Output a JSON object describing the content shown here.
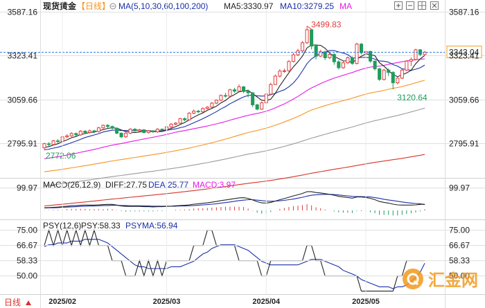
{
  "header": {
    "instrument": "现货黄金",
    "period": "【日线】",
    "period_icon": "circle-minus-icon",
    "ma_params": "MA(5,10,30,60,100,200)",
    "ma5": "MA5:3330.97",
    "ma10": "MA10:3279.25",
    "ma_more": "MA",
    "toolbar_icons": [
      "zoom-in-icon",
      "zoom-out-icon",
      "layout-icon",
      "close-icon"
    ]
  },
  "colors": {
    "ma5": "#222222",
    "ma10": "#1a2fa8",
    "ma30": "#e617e6",
    "ma60": "#f7931e",
    "ma100": "#9b9b9b",
    "ma200": "#d8322a",
    "up": "#e23b3b",
    "down": "#1f9c5a",
    "price_line": "#2c7be5",
    "price_box": "#f0a020",
    "grid": "#dedede",
    "macd_dif": "#222222",
    "macd_dea": "#1a2fa8",
    "psy": "#222222",
    "psyma": "#1a2fa8"
  },
  "chart_data": [
    {
      "type": "candlestick",
      "title": "现货黄金 日线",
      "y_ticks": [
        3587.16,
        3323.41,
        3059.66,
        2795.91
      ],
      "ylim": [
        2590,
        3590
      ],
      "current_price": 3343.04,
      "current_price_label": "3343.04",
      "annotations": [
        {
          "label": "3499.83",
          "value": 3499.83,
          "kind": "high"
        },
        {
          "label": "3120.64",
          "value": 3120.64,
          "kind": "low"
        },
        {
          "label": "2772.06",
          "value": 2772.06,
          "kind": "low"
        }
      ],
      "x_labels": [
        "2025/02",
        "2025/03",
        "2025/04",
        "2025/05"
      ],
      "moving_averages": [
        "MA5",
        "MA10",
        "MA30",
        "MA60",
        "MA100",
        "MA200"
      ],
      "candles": [
        [
          2770,
          2795,
          2760,
          2800
        ],
        [
          2794,
          2790,
          2780,
          2804
        ],
        [
          2790,
          2812,
          2784,
          2818
        ],
        [
          2812,
          2808,
          2798,
          2822
        ],
        [
          2808,
          2836,
          2802,
          2842
        ],
        [
          2836,
          2842,
          2828,
          2852
        ],
        [
          2842,
          2856,
          2836,
          2864
        ],
        [
          2856,
          2848,
          2840,
          2862
        ],
        [
          2848,
          2870,
          2842,
          2876
        ],
        [
          2870,
          2862,
          2852,
          2876
        ],
        [
          2862,
          2872,
          2856,
          2880
        ],
        [
          2872,
          2868,
          2858,
          2878
        ],
        [
          2868,
          2890,
          2862,
          2896
        ],
        [
          2890,
          2905,
          2884,
          2910
        ],
        [
          2905,
          2898,
          2888,
          2912
        ],
        [
          2898,
          2888,
          2880,
          2904
        ],
        [
          2888,
          2858,
          2852,
          2892
        ],
        [
          2858,
          2836,
          2828,
          2862
        ],
        [
          2836,
          2858,
          2830,
          2864
        ],
        [
          2858,
          2882,
          2852,
          2888
        ],
        [
          2882,
          2872,
          2866,
          2888
        ],
        [
          2872,
          2878,
          2866,
          2884
        ],
        [
          2878,
          2862,
          2856,
          2882
        ],
        [
          2862,
          2872,
          2856,
          2876
        ],
        [
          2872,
          2866,
          2860,
          2876
        ],
        [
          2866,
          2882,
          2860,
          2888
        ],
        [
          2882,
          2878,
          2872,
          2886
        ],
        [
          2878,
          2896,
          2872,
          2902
        ],
        [
          2896,
          2912,
          2890,
          2918
        ],
        [
          2912,
          2918,
          2906,
          2924
        ],
        [
          2918,
          2945,
          2914,
          2950
        ],
        [
          2945,
          2938,
          2930,
          2952
        ],
        [
          2938,
          2978,
          2934,
          2984
        ],
        [
          2978,
          2990,
          2972,
          3000
        ],
        [
          2990,
          2986,
          2978,
          2998
        ],
        [
          2986,
          3006,
          2982,
          3012
        ],
        [
          3006,
          3014,
          3000,
          3020
        ],
        [
          3014,
          3038,
          3008,
          3045
        ],
        [
          3038,
          3056,
          3032,
          3060
        ],
        [
          3056,
          3084,
          3050,
          3090
        ],
        [
          3084,
          3080,
          3072,
          3100
        ],
        [
          3080,
          3118,
          3076,
          3124
        ],
        [
          3118,
          3110,
          3100,
          3130
        ],
        [
          3110,
          3136,
          3104,
          3150
        ],
        [
          3136,
          3108,
          3098,
          3140
        ],
        [
          3108,
          3100,
          3072,
          3120
        ],
        [
          3100,
          3028,
          3015,
          3104
        ],
        [
          3028,
          3002,
          2995,
          3034
        ],
        [
          3002,
          3040,
          2998,
          3048
        ],
        [
          3040,
          3092,
          3034,
          3100
        ],
        [
          3092,
          3150,
          3086,
          3160
        ],
        [
          3150,
          3200,
          3146,
          3210
        ],
        [
          3200,
          3230,
          3192,
          3242
        ],
        [
          3230,
          3232,
          3220,
          3245
        ],
        [
          3232,
          3288,
          3226,
          3296
        ],
        [
          3288,
          3328,
          3282,
          3340
        ],
        [
          3328,
          3352,
          3320,
          3364
        ],
        [
          3352,
          3400,
          3346,
          3410
        ],
        [
          3400,
          3478,
          3392,
          3500
        ],
        [
          3478,
          3380,
          3360,
          3484
        ],
        [
          3380,
          3320,
          3300,
          3392
        ],
        [
          3320,
          3346,
          3314,
          3358
        ],
        [
          3346,
          3310,
          3296,
          3352
        ],
        [
          3310,
          3330,
          3302,
          3340
        ],
        [
          3330,
          3286,
          3268,
          3338
        ],
        [
          3286,
          3250,
          3240,
          3296
        ],
        [
          3250,
          3280,
          3244,
          3290
        ],
        [
          3280,
          3310,
          3272,
          3318
        ],
        [
          3310,
          3276,
          3268,
          3318
        ],
        [
          3276,
          3392,
          3270,
          3400
        ],
        [
          3392,
          3340,
          3330,
          3398
        ],
        [
          3340,
          3348,
          3324,
          3352
        ],
        [
          3348,
          3290,
          3280,
          3352
        ],
        [
          3290,
          3244,
          3234,
          3294
        ],
        [
          3244,
          3180,
          3172,
          3250
        ],
        [
          3180,
          3236,
          3174,
          3244
        ],
        [
          3236,
          3222,
          3200,
          3246
        ],
        [
          3222,
          3160,
          3121,
          3230
        ],
        [
          3160,
          3188,
          3150,
          3196
        ],
        [
          3188,
          3236,
          3182,
          3242
        ],
        [
          3236,
          3290,
          3230,
          3296
        ],
        [
          3290,
          3300,
          3260,
          3312
        ],
        [
          3300,
          3358,
          3294,
          3364
        ],
        [
          3358,
          3330,
          3320,
          3362
        ],
        [
          3330,
          3343,
          3326,
          3352
        ]
      ]
    },
    {
      "type": "bar+line",
      "title": "MACD(26,12,9)",
      "diff_label": "DIFF:27.75",
      "dea_label": "DEA:25.77",
      "macd_label": "MACD:3.97",
      "y_ticks": [
        99.97
      ],
      "ylim": [
        -40,
        130
      ],
      "dif": [
        12,
        13,
        14,
        15,
        17,
        19,
        21,
        22,
        23,
        24,
        24,
        24,
        25,
        26,
        27,
        27,
        24,
        20,
        18,
        18,
        18,
        18,
        17,
        17,
        16,
        17,
        17,
        18,
        19,
        21,
        22,
        23,
        25,
        28,
        30,
        32,
        34,
        37,
        40,
        44,
        47,
        50,
        53,
        56,
        57,
        54,
        47,
        39,
        34,
        33,
        36,
        42,
        48,
        53,
        59,
        65,
        70,
        76,
        84,
        84,
        80,
        78,
        75,
        72,
        68,
        63,
        60,
        58,
        55,
        60,
        60,
        58,
        54,
        48,
        40,
        36,
        33,
        28,
        25,
        24,
        24,
        24,
        25,
        27,
        27.75
      ],
      "dea": [
        11,
        12,
        12,
        13,
        14,
        15,
        16,
        17,
        18,
        19,
        20,
        20,
        21,
        22,
        22,
        23,
        23,
        22,
        22,
        21,
        21,
        21,
        20,
        20,
        19,
        19,
        19,
        19,
        19,
        19,
        20,
        20,
        21,
        22,
        23,
        25,
        26,
        28,
        30,
        33,
        35,
        38,
        41,
        44,
        46,
        48,
        48,
        46,
        44,
        42,
        41,
        42,
        43,
        45,
        48,
        51,
        55,
        59,
        64,
        68,
        70,
        71,
        72,
        72,
        71,
        69,
        67,
        65,
        63,
        62,
        62,
        61,
        60,
        57,
        54,
        50,
        47,
        44,
        41,
        38,
        35,
        33,
        31,
        30,
        25.77
      ],
      "macd": [
        1,
        1,
        2,
        2,
        3,
        4,
        5,
        5,
        5,
        5,
        4,
        4,
        4,
        4,
        5,
        4,
        1,
        -2,
        -4,
        -3,
        -3,
        -3,
        -3,
        -3,
        -3,
        -2,
        -2,
        -1,
        0,
        2,
        2,
        3,
        4,
        6,
        7,
        7,
        8,
        9,
        10,
        11,
        12,
        12,
        12,
        12,
        11,
        6,
        -1,
        -7,
        -10,
        -9,
        -5,
        0,
        5,
        8,
        11,
        14,
        15,
        17,
        20,
        16,
        10,
        7,
        3,
        0,
        -3,
        -6,
        -7,
        -7,
        -8,
        -2,
        -2,
        -3,
        -6,
        -9,
        -14,
        -14,
        -14,
        -16,
        -16,
        -14,
        -11,
        -9,
        -6,
        -3,
        3.97
      ]
    },
    {
      "type": "line",
      "title": "PSY(12,6)",
      "psy_label": "PSY:58.33",
      "psyma_label": "PSYMA:56.94",
      "y_ticks": [
        75.0,
        66.67,
        58.33,
        50.0
      ],
      "ylim": [
        40,
        79
      ],
      "psy": [
        66.67,
        75,
        66.67,
        75,
        66.67,
        75,
        66.67,
        75,
        66.67,
        75,
        66.67,
        75,
        66.67,
        66.67,
        66.67,
        58.33,
        58.33,
        58.33,
        50,
        50,
        50,
        58.33,
        50,
        58.33,
        50,
        58.33,
        50,
        58.33,
        58.33,
        58.33,
        58.33,
        58.33,
        58.33,
        66.67,
        66.67,
        66.67,
        75,
        75,
        66.67,
        66.67,
        66.67,
        66.67,
        66.67,
        58.33,
        58.33,
        58.33,
        58.33,
        58.33,
        50,
        50,
        58.33,
        58.33,
        58.33,
        58.33,
        58.33,
        58.33,
        58.33,
        58.33,
        66.67,
        66.67,
        58.33,
        58.33,
        50,
        50,
        50,
        50,
        50,
        50,
        50,
        50,
        41.67,
        41.67,
        41.67,
        41.67,
        41.67,
        41.67,
        41.67,
        41.67,
        50,
        50,
        58.33,
        58.33,
        58.33,
        58.33,
        58.33
      ],
      "psyma": [
        66,
        67,
        67,
        68,
        68,
        68,
        69,
        69,
        69,
        70,
        70,
        70,
        70,
        69,
        68,
        66,
        64,
        62,
        60,
        58,
        56,
        55,
        55,
        54,
        54,
        54,
        54,
        54,
        55,
        55,
        55,
        56,
        57,
        58,
        60,
        62,
        63,
        65,
        66,
        67,
        67,
        67,
        67,
        66,
        65,
        64,
        62,
        60,
        58,
        57,
        56,
        56,
        56,
        56,
        56,
        56,
        56,
        57,
        58,
        59,
        59,
        59,
        58,
        57,
        56,
        55,
        53,
        52,
        51,
        50,
        48,
        47,
        46,
        45,
        44,
        44,
        44,
        43,
        44,
        44,
        45,
        47,
        49,
        52,
        56.94
      ]
    }
  ],
  "watermark": {
    "text": "汇金网"
  },
  "footer": {
    "text": "日线",
    "icon": "triangle-icon"
  }
}
